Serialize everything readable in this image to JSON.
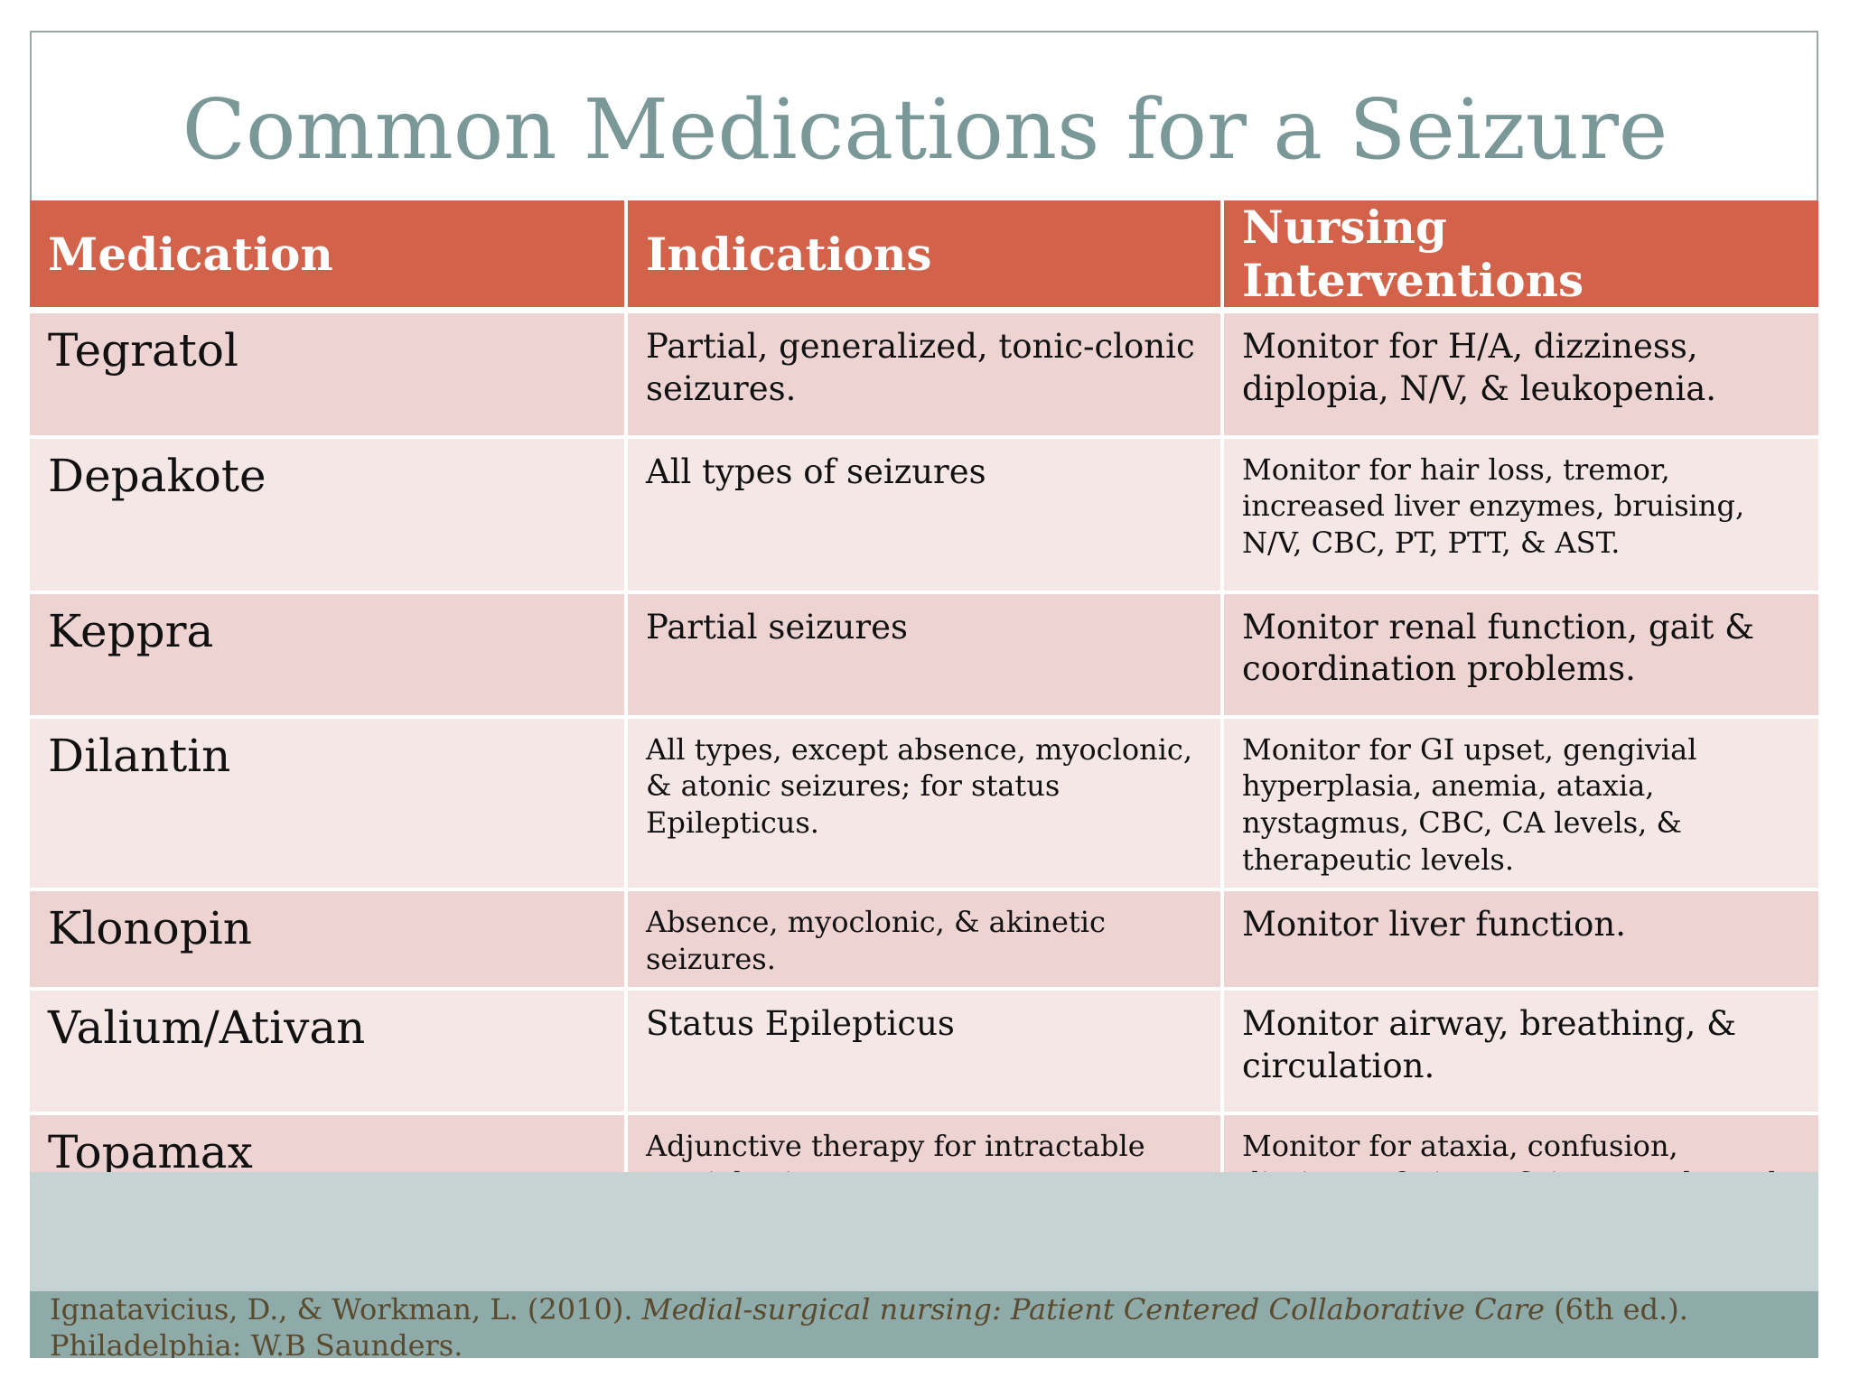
{
  "slide": {
    "title": "Common Medications for a Seizure"
  },
  "table": {
    "headers": [
      "Medication",
      "Indications",
      "Nursing Interventions"
    ],
    "rows": [
      {
        "medication": "Tegratol",
        "indications": "Partial, generalized, tonic-clonic seizures.",
        "interventions": "Monitor for H/A, dizziness, diplopia, N/V, & leukopenia."
      },
      {
        "medication": "Depakote",
        "indications": "All types of seizures",
        "interventions": "Monitor for hair loss, tremor, increased liver enzymes, bruising,  N/V, CBC, PT, PTT, & AST."
      },
      {
        "medication": "Keppra",
        "indications": "Partial seizures",
        "interventions": "Monitor renal function, gait & coordination problems."
      },
      {
        "medication": "Dilantin",
        "indications": "All types, except absence, myoclonic, & atonic seizures; for status Epilepticus.",
        "interventions": "Monitor for GI upset, gengivial hyperplasia, anemia, ataxia, nystagmus, CBC, CA levels, & therapeutic levels."
      },
      {
        "medication": "Klonopin",
        "indications": "Absence, myoclonic, & akinetic seizures.",
        "interventions": "Monitor liver function."
      },
      {
        "medication": "Valium/Ativan",
        "indications": "Status Epilepticus",
        "interventions": "Monitor airway, breathing, & circulation."
      },
      {
        "medication": "Topamax",
        "indications": "Adjunctive therapy for intractable partial seizures.",
        "interventions": "Monitor for ataxia, confusion, dizziness, fatigue, & increased renal calculi."
      }
    ]
  },
  "citation": {
    "authors": "Ignatavicius, D., & Workman, L. (2010). ",
    "book_title": "Medial-surgical nursing: Patient Centered Collaborative Care",
    "publisher": " (6th ed.). Philadelphia: W.B Saunders."
  },
  "colors": {
    "title": "#7a9898",
    "header_bg": "#d2634a",
    "row_odd": "#eed3d3",
    "row_even": "#f6e7e7",
    "band": "#c5d3d3",
    "footer": "#8eaaa9"
  }
}
